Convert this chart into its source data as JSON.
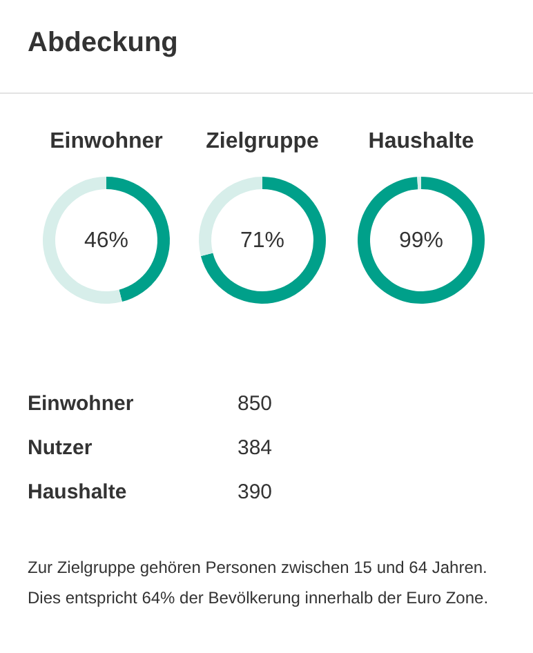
{
  "chart_data": [
    {
      "type": "other",
      "title": "Abdeckung"
    },
    {
      "type": "donut",
      "title": "Einwohner",
      "categories": [
        null,
        null
      ],
      "values": [
        46,
        54
      ],
      "colors": [
        "#00a08a",
        "#d7eeea"
      ],
      "annotations": [
        "46%"
      ]
    },
    {
      "type": "donut",
      "title": "Zielgruppe",
      "categories": [
        null,
        null
      ],
      "values": [
        71,
        29
      ],
      "colors": [
        "#00a08a",
        "#d7eeea"
      ],
      "annotations": [
        "71%"
      ]
    },
    {
      "type": "donut",
      "title": "Haushalte",
      "categories": [
        null,
        null
      ],
      "values": [
        99,
        1
      ],
      "colors": [
        "#00a08a",
        "#d7eeea"
      ],
      "annotations": [
        "99%"
      ]
    },
    {
      "type": "other",
      "categories": [
        "Einwohner",
        "Nutzer",
        "Haushalte"
      ],
      "values": [
        850,
        384,
        390
      ],
      "data_labels": true,
      "annotations": [
        "Zur Zielgruppe gehören Personen zwischen 15 und 64 Jahren. Dies entspricht 64% der Bevölkerung innerhalb der Euro Zone."
      ]
    }
  ]
}
